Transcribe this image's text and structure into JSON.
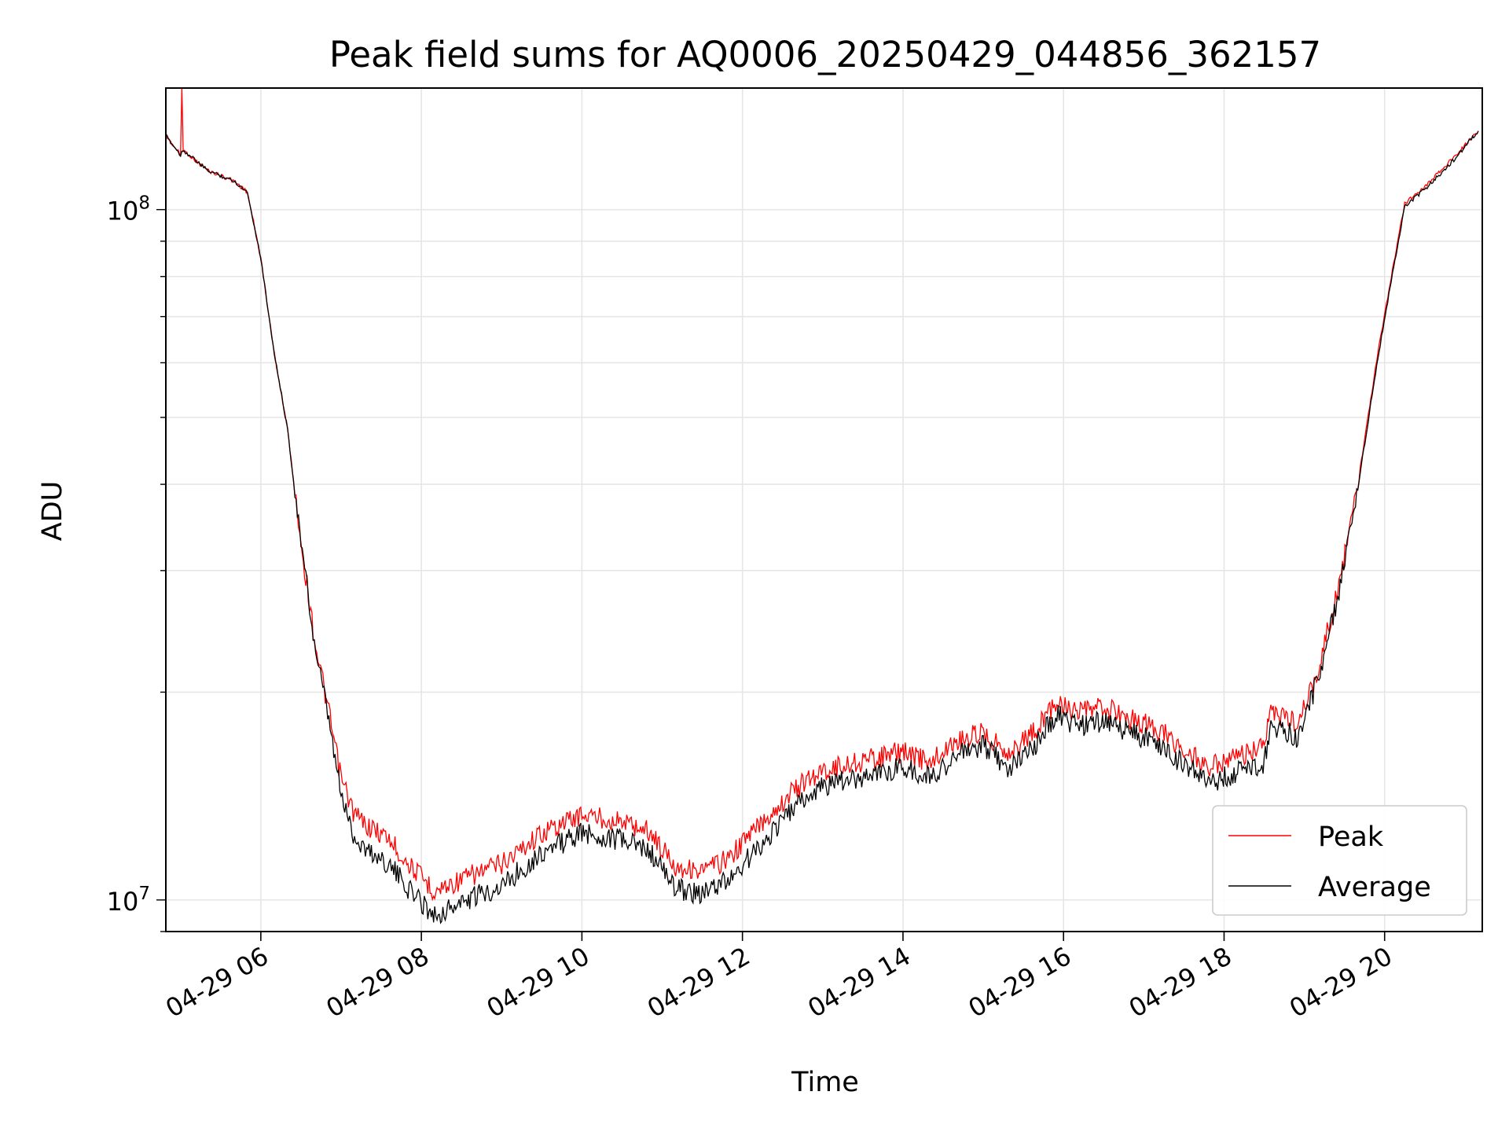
{
  "chart_data": {
    "type": "line",
    "title": "Peak field sums for AQ0006_20250429_044856_362157",
    "xlabel": "Time",
    "ylabel": "ADU",
    "y_scale": "log",
    "ylim": [
      9000000,
      150000000
    ],
    "xlim": [
      "2025-04-29 04:49",
      "2025-04-29 21:13"
    ],
    "grid": true,
    "legend_position": "lower-right",
    "x_ticks": [
      {
        "value": "2025-04-29 06:00",
        "label": "04-29 06"
      },
      {
        "value": "2025-04-29 08:00",
        "label": "04-29 08"
      },
      {
        "value": "2025-04-29 10:00",
        "label": "04-29 10"
      },
      {
        "value": "2025-04-29 12:00",
        "label": "04-29 12"
      },
      {
        "value": "2025-04-29 14:00",
        "label": "04-29 14"
      },
      {
        "value": "2025-04-29 16:00",
        "label": "04-29 16"
      },
      {
        "value": "2025-04-29 18:00",
        "label": "04-29 18"
      },
      {
        "value": "2025-04-29 20:00",
        "label": "04-29 20"
      }
    ],
    "y_ticks": [
      {
        "value": 10000000,
        "base": "10",
        "exp": "7"
      },
      {
        "value": 100000000,
        "base": "10",
        "exp": "8"
      }
    ],
    "series": [
      {
        "name": "Peak",
        "color": "#ff0000",
        "points": [
          [
            "2025-04-29 04:49",
            128000000
          ],
          [
            "2025-04-29 05:00",
            120000000
          ],
          [
            "2025-04-29 05:01",
            150000000
          ],
          [
            "2025-04-29 05:02",
            122000000
          ],
          [
            "2025-04-29 05:20",
            114000000
          ],
          [
            "2025-04-29 05:40",
            110000000
          ],
          [
            "2025-04-29 05:50",
            106000000
          ],
          [
            "2025-04-29 06:00",
            85000000
          ],
          [
            "2025-04-29 06:10",
            62000000
          ],
          [
            "2025-04-29 06:20",
            48000000
          ],
          [
            "2025-04-29 06:30",
            33000000
          ],
          [
            "2025-04-29 06:40",
            24000000
          ],
          [
            "2025-04-29 06:50",
            19000000
          ],
          [
            "2025-04-29 07:00",
            15000000
          ],
          [
            "2025-04-29 07:10",
            13300000
          ],
          [
            "2025-04-29 07:20",
            12800000
          ],
          [
            "2025-04-29 07:35",
            12300000
          ],
          [
            "2025-04-29 07:50",
            11300000
          ],
          [
            "2025-04-29 08:10",
            10300000
          ],
          [
            "2025-04-29 08:30",
            10700000
          ],
          [
            "2025-04-29 09:00",
            11300000
          ],
          [
            "2025-04-29 09:30",
            12500000
          ],
          [
            "2025-04-29 10:00",
            13300000
          ],
          [
            "2025-04-29 10:30",
            13000000
          ],
          [
            "2025-04-29 10:50",
            12600000
          ],
          [
            "2025-04-29 11:10",
            11200000
          ],
          [
            "2025-04-29 11:30",
            11000000
          ],
          [
            "2025-04-29 11:50",
            11500000
          ],
          [
            "2025-04-29 12:10",
            12700000
          ],
          [
            "2025-04-29 12:40",
            14500000
          ],
          [
            "2025-04-29 13:00",
            15400000
          ],
          [
            "2025-04-29 13:30",
            15900000
          ],
          [
            "2025-04-29 14:00",
            16400000
          ],
          [
            "2025-04-29 14:20",
            15800000
          ],
          [
            "2025-04-29 14:40",
            17000000
          ],
          [
            "2025-04-29 15:00",
            17500000
          ],
          [
            "2025-04-29 15:20",
            16300000
          ],
          [
            "2025-04-29 15:40",
            17700000
          ],
          [
            "2025-04-29 15:55",
            19500000
          ],
          [
            "2025-04-29 16:10",
            18600000
          ],
          [
            "2025-04-29 16:30",
            19000000
          ],
          [
            "2025-04-29 16:50",
            18300000
          ],
          [
            "2025-04-29 17:10",
            17700000
          ],
          [
            "2025-04-29 17:30",
            16500000
          ],
          [
            "2025-04-29 17:50",
            15600000
          ],
          [
            "2025-04-29 18:10",
            16100000
          ],
          [
            "2025-04-29 18:30",
            16600000
          ],
          [
            "2025-04-29 18:35",
            18800000
          ],
          [
            "2025-04-29 18:55",
            18000000
          ],
          [
            "2025-04-29 19:10",
            21500000
          ],
          [
            "2025-04-29 19:25",
            28000000
          ],
          [
            "2025-04-29 19:40",
            40000000
          ],
          [
            "2025-04-29 19:55",
            62000000
          ],
          [
            "2025-04-29 20:05",
            80000000
          ],
          [
            "2025-04-29 20:15",
            102000000
          ],
          [
            "2025-04-29 20:30",
            108000000
          ],
          [
            "2025-04-29 20:50",
            118000000
          ],
          [
            "2025-04-29 21:10",
            130000000
          ]
        ]
      },
      {
        "name": "Average",
        "color": "#000000",
        "points": [
          [
            "2025-04-29 04:49",
            128000000
          ],
          [
            "2025-04-29 05:00",
            120000000
          ],
          [
            "2025-04-29 05:02",
            122000000
          ],
          [
            "2025-04-29 05:20",
            114000000
          ],
          [
            "2025-04-29 05:40",
            110000000
          ],
          [
            "2025-04-29 05:50",
            106000000
          ],
          [
            "2025-04-29 06:00",
            85000000
          ],
          [
            "2025-04-29 06:10",
            62000000
          ],
          [
            "2025-04-29 06:20",
            48000000
          ],
          [
            "2025-04-29 06:30",
            33000000
          ],
          [
            "2025-04-29 06:40",
            23500000
          ],
          [
            "2025-04-29 06:50",
            18500000
          ],
          [
            "2025-04-29 07:00",
            14200000
          ],
          [
            "2025-04-29 07:10",
            12300000
          ],
          [
            "2025-04-29 07:20",
            11800000
          ],
          [
            "2025-04-29 07:35",
            11300000
          ],
          [
            "2025-04-29 07:50",
            10400000
          ],
          [
            "2025-04-29 08:10",
            9500000
          ],
          [
            "2025-04-29 08:30",
            9900000
          ],
          [
            "2025-04-29 09:00",
            10500000
          ],
          [
            "2025-04-29 09:30",
            11700000
          ],
          [
            "2025-04-29 10:00",
            12500000
          ],
          [
            "2025-04-29 10:30",
            12200000
          ],
          [
            "2025-04-29 10:50",
            11800000
          ],
          [
            "2025-04-29 11:10",
            10400000
          ],
          [
            "2025-04-29 11:30",
            10200000
          ],
          [
            "2025-04-29 11:50",
            10700000
          ],
          [
            "2025-04-29 12:10",
            11800000
          ],
          [
            "2025-04-29 12:40",
            13700000
          ],
          [
            "2025-04-29 13:00",
            14600000
          ],
          [
            "2025-04-29 13:30",
            15100000
          ],
          [
            "2025-04-29 14:00",
            15600000
          ],
          [
            "2025-04-29 14:20",
            15000000
          ],
          [
            "2025-04-29 14:40",
            16200000
          ],
          [
            "2025-04-29 15:00",
            16700000
          ],
          [
            "2025-04-29 15:20",
            15500000
          ],
          [
            "2025-04-29 15:40",
            16900000
          ],
          [
            "2025-04-29 15:55",
            18700000
          ],
          [
            "2025-04-29 16:10",
            17800000
          ],
          [
            "2025-04-29 16:30",
            18200000
          ],
          [
            "2025-04-29 16:50",
            17500000
          ],
          [
            "2025-04-29 17:10",
            16900000
          ],
          [
            "2025-04-29 17:30",
            15700000
          ],
          [
            "2025-04-29 17:50",
            14800000
          ],
          [
            "2025-04-29 18:10",
            15300000
          ],
          [
            "2025-04-29 18:30",
            15800000
          ],
          [
            "2025-04-29 18:35",
            18000000
          ],
          [
            "2025-04-29 18:55",
            17200000
          ],
          [
            "2025-04-29 19:10",
            20800000
          ],
          [
            "2025-04-29 19:25",
            27500000
          ],
          [
            "2025-04-29 19:40",
            39500000
          ],
          [
            "2025-04-29 19:55",
            61000000
          ],
          [
            "2025-04-29 20:05",
            79000000
          ],
          [
            "2025-04-29 20:15",
            101000000
          ],
          [
            "2025-04-29 20:30",
            107000000
          ],
          [
            "2025-04-29 20:50",
            117000000
          ],
          [
            "2025-04-29 21:10",
            130000000
          ]
        ]
      }
    ]
  }
}
